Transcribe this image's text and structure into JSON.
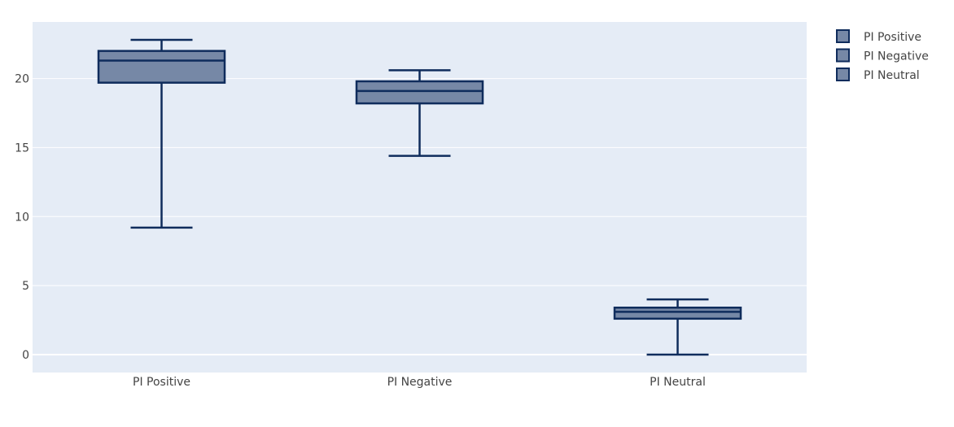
{
  "chart_data": {
    "type": "box",
    "categories": [
      "PI Positive",
      "PI Negative",
      "PI Neutral"
    ],
    "series": [
      {
        "name": "PI Positive",
        "min": 9.2,
        "q1": 19.7,
        "median": 21.3,
        "q3": 22.0,
        "max": 22.8
      },
      {
        "name": "PI Negative",
        "min": 14.4,
        "q1": 18.2,
        "median": 19.1,
        "q3": 19.8,
        "max": 20.6
      },
      {
        "name": "PI Neutral",
        "min": 0.0,
        "q1": 2.6,
        "median": 3.1,
        "q3": 3.4,
        "max": 4.0
      }
    ],
    "yticks": [
      0,
      5,
      10,
      15,
      20
    ],
    "ylim": [
      -1.3,
      24.1
    ],
    "grid": true,
    "legend_position": "top-right",
    "colors": {
      "plot_background": "#e5ecf6",
      "box_fill": "#7688a6",
      "box_line": "#0f2c5c",
      "grid": "#ffffff",
      "tick_text": "#444444"
    }
  }
}
